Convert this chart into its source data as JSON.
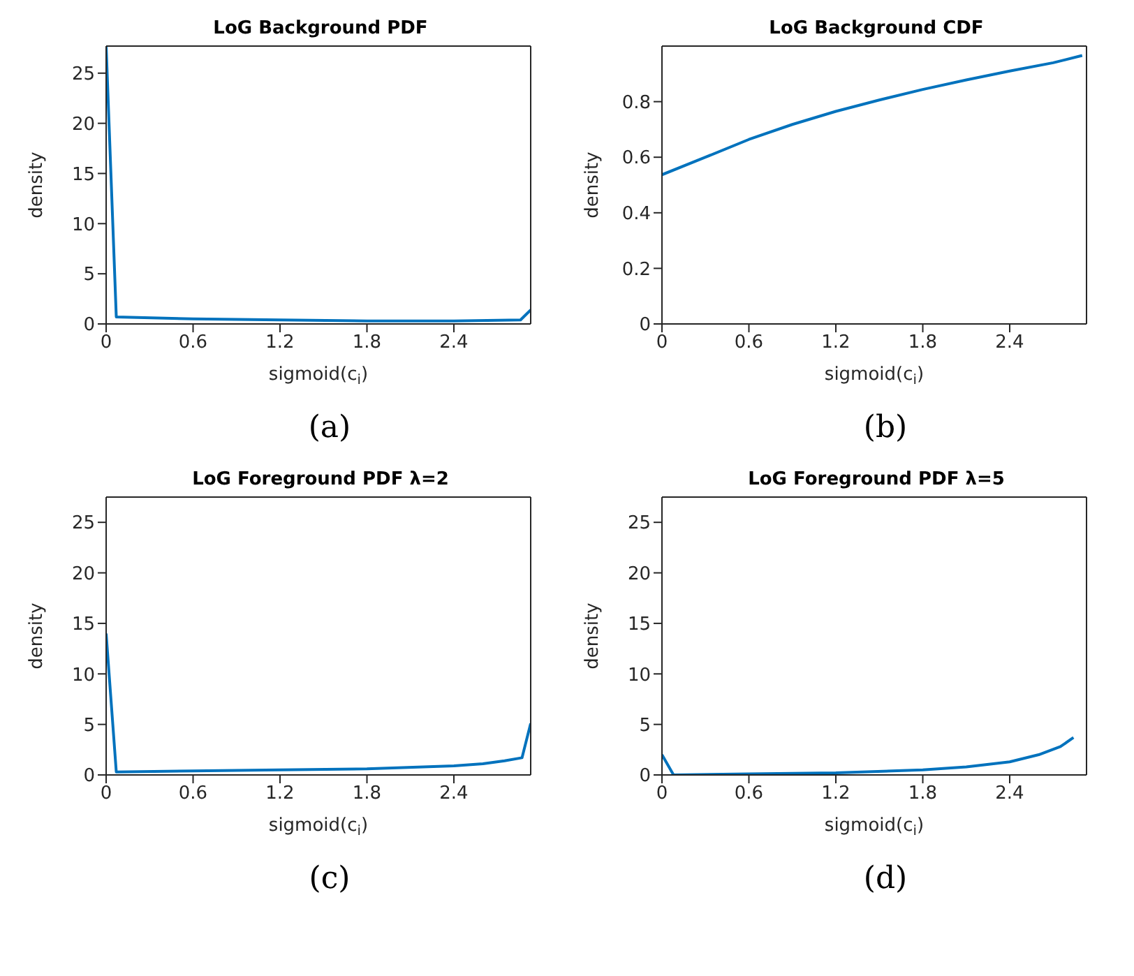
{
  "chart_data": [
    {
      "type": "line",
      "title": "LoG Background PDF",
      "xlabel": "sigmoid(c$_{i}$)",
      "ylabel": "density",
      "xlim": [
        0,
        2.93
      ],
      "ylim": [
        0,
        27.7
      ],
      "xticks": [
        0,
        0.6,
        1.2,
        1.8,
        2.4
      ],
      "yticks": [
        0,
        5,
        10,
        15,
        20,
        25
      ],
      "annotations": [
        "(a)"
      ],
      "x": [
        0,
        0.07,
        0.6,
        1.2,
        1.8,
        2.4,
        2.86,
        2.93
      ],
      "series": [
        {
          "color": "#0072bd",
          "values": [
            27.7,
            0.7,
            0.5,
            0.4,
            0.3,
            0.3,
            0.4,
            1.4
          ]
        }
      ]
    },
    {
      "type": "line",
      "title": "LoG Background CDF",
      "xlabel": "sigmoid(c$_{i}$)",
      "ylabel": "density",
      "xlim": [
        0,
        2.93
      ],
      "ylim": [
        0,
        1
      ],
      "xticks": [
        0,
        0.6,
        1.2,
        1.8,
        2.4
      ],
      "yticks": [
        0,
        0.2,
        0.4,
        0.6,
        0.8
      ],
      "annotations": [
        "(b)"
      ],
      "x": [
        0,
        0.3,
        0.6,
        0.9,
        1.2,
        1.5,
        1.8,
        2.1,
        2.4,
        2.7,
        2.9
      ],
      "series": [
        {
          "color": "#0072bd",
          "values": [
            0.537,
            0.6,
            0.664,
            0.718,
            0.765,
            0.806,
            0.844,
            0.878,
            0.91,
            0.94,
            0.966
          ]
        }
      ]
    },
    {
      "type": "line",
      "title": "LoG Foreground PDF λ=2",
      "xlabel": "sigmoid(c$_{i}$)",
      "ylabel": "density",
      "xlim": [
        0,
        2.93
      ],
      "ylim": [
        0,
        27.5
      ],
      "xticks": [
        0,
        0.6,
        1.2,
        1.8,
        2.4
      ],
      "yticks": [
        0,
        5,
        10,
        15,
        20,
        25
      ],
      "annotations": [
        "(c)"
      ],
      "x": [
        0,
        0.07,
        0.6,
        1.2,
        1.8,
        2.4,
        2.6,
        2.75,
        2.87,
        2.93
      ],
      "series": [
        {
          "color": "#0072bd",
          "values": [
            14,
            0.3,
            0.4,
            0.5,
            0.6,
            0.9,
            1.1,
            1.4,
            1.7,
            5.1
          ]
        }
      ]
    },
    {
      "type": "line",
      "title": "LoG Foreground PDF λ=5",
      "xlabel": "sigmoid(c$_{i}$)",
      "ylabel": "density",
      "xlim": [
        0,
        2.93
      ],
      "ylim": [
        0,
        27.5
      ],
      "xticks": [
        0,
        0.6,
        1.2,
        1.8,
        2.4
      ],
      "yticks": [
        0,
        5,
        10,
        15,
        20,
        25
      ],
      "annotations": [
        "(d)"
      ],
      "x": [
        0,
        0.08,
        0.6,
        1.2,
        1.8,
        2.1,
        2.4,
        2.6,
        2.75,
        2.84
      ],
      "series": [
        {
          "color": "#0072bd",
          "values": [
            2,
            0,
            0.1,
            0.2,
            0.5,
            0.8,
            1.3,
            2,
            2.8,
            3.7
          ]
        }
      ]
    }
  ]
}
